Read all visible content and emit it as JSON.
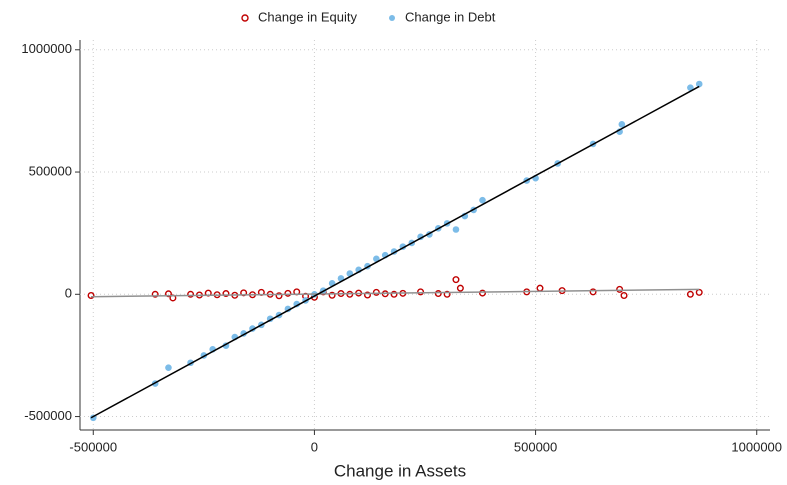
{
  "chart_data": {
    "type": "scatter",
    "x_label": "Change in Assets",
    "xlim": [
      -530000,
      1030000
    ],
    "ylim": [
      -555000,
      1040000
    ],
    "xticks": [
      -500000,
      0,
      500000,
      1000000
    ],
    "yticks": [
      -500000,
      0,
      500000,
      1000000
    ],
    "grid": true,
    "legend": "top",
    "series": [
      {
        "name": "Change in Equity",
        "color": "#c00000",
        "marker": "hollow",
        "x": [
          -505000,
          -360000,
          -330000,
          -320000,
          -280000,
          -260000,
          -240000,
          -220000,
          -200000,
          -180000,
          -160000,
          -140000,
          -120000,
          -100000,
          -80000,
          -60000,
          -40000,
          -20000,
          0,
          20000,
          40000,
          60000,
          80000,
          100000,
          120000,
          140000,
          160000,
          180000,
          200000,
          240000,
          280000,
          300000,
          320000,
          330000,
          380000,
          480000,
          510000,
          560000,
          630000,
          690000,
          700000,
          850000,
          870000
        ],
        "values": [
          -5000,
          0,
          2000,
          -15000,
          0,
          -3000,
          5000,
          -2000,
          3000,
          -4000,
          6000,
          -2000,
          8000,
          0,
          -6000,
          4000,
          10000,
          -8000,
          -12000,
          10000,
          -4000,
          3000,
          0,
          5000,
          -3000,
          8000,
          2000,
          0,
          4000,
          10000,
          3000,
          0,
          60000,
          25000,
          5000,
          10000,
          25000,
          15000,
          10000,
          20000,
          -5000,
          0,
          8000
        ]
      },
      {
        "name": "Change in Debt",
        "color": "#7cbce8",
        "marker": "filled",
        "x": [
          -500000,
          -360000,
          -330000,
          -280000,
          -250000,
          -230000,
          -200000,
          -180000,
          -160000,
          -140000,
          -120000,
          -100000,
          -80000,
          -60000,
          -40000,
          -20000,
          0,
          20000,
          40000,
          60000,
          80000,
          100000,
          120000,
          140000,
          160000,
          180000,
          200000,
          220000,
          240000,
          260000,
          280000,
          300000,
          320000,
          340000,
          360000,
          380000,
          480000,
          500000,
          550000,
          630000,
          690000,
          695000,
          850000,
          870000
        ],
        "values": [
          -505000,
          -365000,
          -300000,
          -280000,
          -250000,
          -225000,
          -210000,
          -175000,
          -160000,
          -140000,
          -125000,
          -100000,
          -85000,
          -60000,
          -40000,
          -25000,
          0,
          15000,
          45000,
          65000,
          85000,
          100000,
          115000,
          145000,
          160000,
          175000,
          195000,
          210000,
          235000,
          245000,
          270000,
          290000,
          265000,
          320000,
          345000,
          385000,
          465000,
          475000,
          535000,
          615000,
          665000,
          695000,
          845000,
          860000
        ]
      }
    ],
    "fit_lines": [
      {
        "color": "#909090",
        "x": [
          -505000,
          870000
        ],
        "values": [
          -10000,
          20000
        ]
      },
      {
        "color": "#000000",
        "x": [
          -505000,
          870000
        ],
        "values": [
          -505000,
          850000
        ]
      }
    ]
  }
}
